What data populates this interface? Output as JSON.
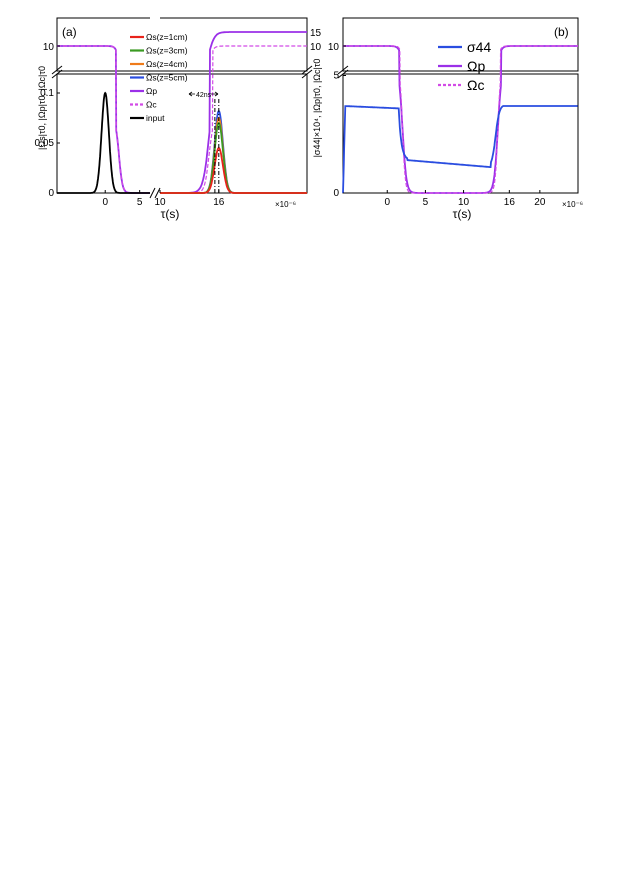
{
  "figure": {
    "panel_a_label": "(a)",
    "panel_b_label": "(b)"
  },
  "colors": {
    "red": "#e8231b",
    "green": "#3a9a22",
    "orange": "#ef7b1a",
    "blue": "#2a4de0",
    "purple": "#9b30e8",
    "magenta_dashed": "#d24be6",
    "black": "#000000"
  },
  "chart_data": [
    {
      "panel": "a",
      "type": "line",
      "ylabel": "|Ωs|τ0, |Ωp|τ0, |Ωc|τ0",
      "xlabel": "τ(s)",
      "x_multiplier": "×10⁻⁶",
      "x_ticks": [
        "0",
        "5",
        "10",
        "16"
      ],
      "y_ticks_lower": [
        "0",
        "0.05",
        "0.1"
      ],
      "y_tick_upper_left": "10",
      "right_labels": [
        "15",
        "10"
      ],
      "annotation": "42ns",
      "legend": [
        "Ωs(z=1cm)",
        "Ωs(z=3cm)",
        "Ωs(z=4cm)",
        "Ωs(z=5cm)",
        "Ωp",
        "Ωc",
        "input"
      ],
      "series": [
        {
          "name": "input",
          "kind": "gaussian",
          "center_us": 0,
          "width_us": 0.75,
          "peak": 0.1
        },
        {
          "name": "Ωs(z=1cm)",
          "kind": "gaussian",
          "center_us": 16,
          "width_us": 0.6,
          "peak": 0.045
        },
        {
          "name": "Ωs(z=3cm)",
          "kind": "gaussian",
          "center_us": 16,
          "width_us": 0.6,
          "peak": 0.07
        },
        {
          "name": "Ωs(z=4cm)",
          "kind": "gaussian",
          "center_us": 16,
          "width_us": 0.6,
          "peak": 0.075
        },
        {
          "name": "Ωs(z=5cm)",
          "kind": "gaussian",
          "center_us": 16,
          "width_us": 0.6,
          "peak": 0.082
        },
        {
          "name": "Ωp",
          "kind": "switch",
          "high_before": 10,
          "off_us": 2,
          "on_us": 15,
          "high_after": 15
        },
        {
          "name": "Ωc",
          "kind": "switch",
          "high_before": 10,
          "off_us": 2,
          "on_us": 15,
          "high_after": 10
        }
      ]
    },
    {
      "panel": "b",
      "type": "line",
      "ylabel": "|σ44|×10⁴, |Ωp|τ0, |Ωc|τ0",
      "xlabel": "τ(s)",
      "x_multiplier": "×10⁻⁶",
      "x_ticks": [
        "0",
        "5",
        "10",
        "16",
        "20"
      ],
      "y_ticks_lower": [
        "0",
        "5"
      ],
      "y_tick_upper": "10",
      "legend": [
        "σ44",
        "Ωp",
        "Ωc"
      ],
      "series": [
        {
          "name": "σ44",
          "values_x_us": [
            -5.8,
            -5.5,
            0,
            1.5,
            2.5,
            13.5,
            14.5,
            25
          ],
          "values_y": [
            0,
            3.7,
            3.7,
            3.6,
            1.4,
            1.1,
            3.6,
            3.7
          ]
        },
        {
          "name": "Ωp",
          "kind": "switch",
          "high": 10,
          "off_us": 2,
          "on_us": 14.5
        },
        {
          "name": "Ωc",
          "kind": "switch",
          "high": 10,
          "off_us": 2,
          "on_us": 14.5
        }
      ]
    }
  ]
}
